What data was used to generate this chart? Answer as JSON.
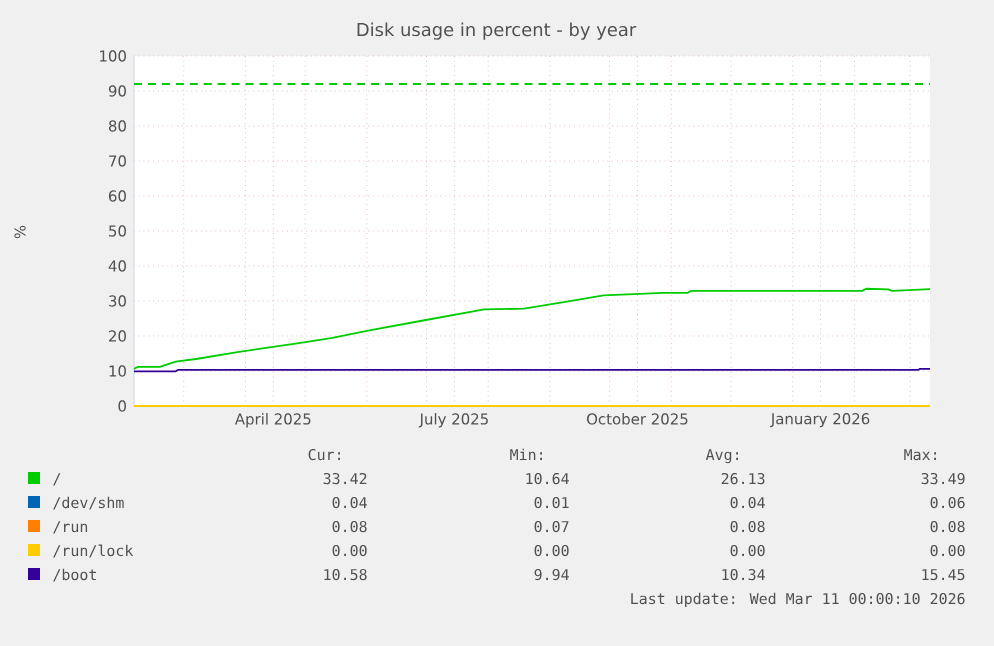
{
  "chart_data": {
    "type": "line",
    "title": "Disk usage in percent - by year",
    "ylabel": "%",
    "xlim": [
      "2025-02-04",
      "2026-03-11"
    ],
    "xticks": [
      {
        "value": "2025-03-01",
        "label": null
      },
      {
        "value": "2025-04-01",
        "label": null
      },
      {
        "value": "2025-04-15",
        "label": "April 2025"
      },
      {
        "value": "2025-05-01",
        "label": null
      },
      {
        "value": "2025-06-01",
        "label": null
      },
      {
        "value": "2025-07-01",
        "label": null
      },
      {
        "value": "2025-07-15",
        "label": "July 2025"
      },
      {
        "value": "2025-08-01",
        "label": null
      },
      {
        "value": "2025-09-01",
        "label": null
      },
      {
        "value": "2025-10-01",
        "label": null
      },
      {
        "value": "2025-10-15",
        "label": "October 2025"
      },
      {
        "value": "2025-11-01",
        "label": null
      },
      {
        "value": "2025-12-01",
        "label": null
      },
      {
        "value": "2026-01-01",
        "label": null
      },
      {
        "value": "2026-01-15",
        "label": "January 2026"
      },
      {
        "value": "2026-02-01",
        "label": null
      },
      {
        "value": "2026-03-01",
        "label": null
      }
    ],
    "ylim": [
      0,
      100
    ],
    "yticks": [
      0,
      10,
      20,
      30,
      40,
      50,
      60,
      70,
      80,
      90,
      100
    ],
    "grid": true,
    "legend": "bottom",
    "line_style": "solid",
    "series": [
      {
        "name": "/",
        "color": "#00cc00",
        "x": [
          "2025-02-04",
          "2025-02-06",
          "2025-02-17",
          "2025-02-25",
          "2025-03-08",
          "2025-03-28",
          "2025-04-27",
          "2025-05-14",
          "2025-06-03",
          "2025-06-30",
          "2025-07-30",
          "2025-08-19",
          "2025-09-08",
          "2025-09-28",
          "2025-10-10",
          "2025-10-28",
          "2025-11-09",
          "2025-11-11",
          "2026-02-05",
          "2026-02-07",
          "2026-02-18",
          "2026-02-20",
          "2026-03-11"
        ],
        "values": [
          10.6,
          11.2,
          11.2,
          12.7,
          13.5,
          15.4,
          17.9,
          19.4,
          21.7,
          24.5,
          27.6,
          27.8,
          29.7,
          31.6,
          31.9,
          32.3,
          32.3,
          32.9,
          32.9,
          33.5,
          33.3,
          32.9,
          33.4
        ]
      },
      {
        "name": "/dev/shm",
        "color": "#0066b3"
      },
      {
        "name": "/run",
        "color": "#ff8000"
      },
      {
        "name": "/run/lock",
        "color": "#ffcc00",
        "x": [
          "2025-02-04",
          "2026-03-11"
        ],
        "values": [
          0.0,
          0.0
        ]
      },
      {
        "name": "/boot",
        "color": "#330099",
        "x": [
          "2025-02-04",
          "2025-02-25",
          "2025-02-26",
          "2026-03-05",
          "2026-03-06",
          "2026-03-11"
        ],
        "values": [
          9.9,
          9.9,
          10.3,
          10.3,
          10.6,
          10.6
        ]
      }
    ],
    "ref_lines": [
      {
        "axis": "y",
        "value": 92,
        "color": "#00cc00",
        "line_style": "dashed"
      }
    ],
    "annotations": [
      "Cur:",
      "Min:",
      "Avg:",
      "Max:",
      "33.42",
      "10.64",
      "26.13",
      "33.49",
      "0.04",
      "0.01",
      "0.04",
      "0.06",
      "0.08",
      "0.07",
      "0.08",
      "0.08",
      "0.00",
      "0.00",
      "0.00",
      "0.00",
      "10.58",
      "9.94",
      "10.34",
      "15.45",
      "Last update: Wed Mar 11 00:00:10 2026"
    ]
  }
}
